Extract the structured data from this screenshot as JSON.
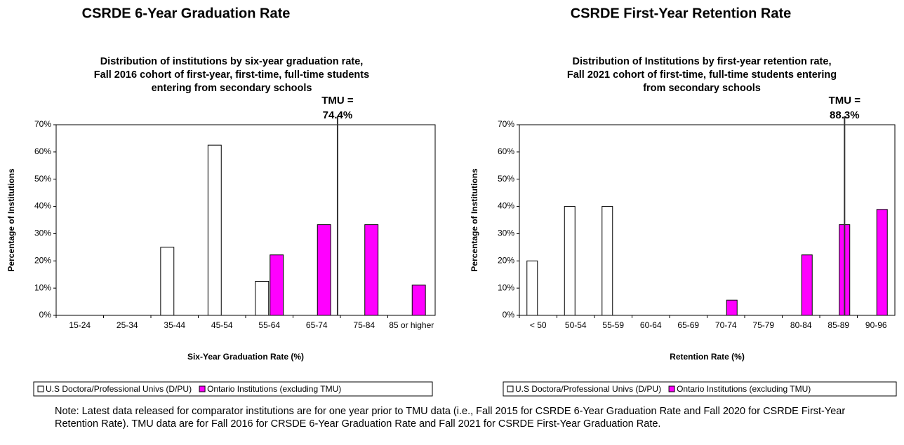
{
  "chart_data": [
    {
      "type": "bar",
      "heading": "CSRDE 6-Year Graduation Rate",
      "title_lines": [
        "Distribution of institutions by six-year graduation rate,",
        "Fall 2016 cohort of first-year, first-time, full-time students",
        "entering from secondary schools"
      ],
      "x_label": "Six-Year Graduation Rate (%)",
      "y_label": "Percentage of Institutions",
      "categories": [
        "15-24",
        "25-34",
        "35-44",
        "45-54",
        "55-64",
        "65-74",
        "75-84",
        "85 or higher"
      ],
      "series": [
        {
          "name": "U.S Doctora/Professional Univs (D/PU)",
          "color": "#ffffff",
          "values": [
            0,
            0,
            25,
            62.5,
            12.5,
            0,
            0,
            0
          ]
        },
        {
          "name": "Ontario Institutions (excluding TMU)",
          "color": "#ff00ff",
          "values": [
            0,
            0,
            0,
            0,
            22.2,
            33.3,
            33.3,
            11.1
          ]
        }
      ],
      "ylim": [
        0,
        70
      ],
      "yticks": [
        {
          "value": 0,
          "label": "0%"
        },
        {
          "value": 10,
          "label": "10%"
        },
        {
          "value": 20,
          "label": "20%"
        },
        {
          "value": 30,
          "label": "30%"
        },
        {
          "value": 40,
          "label": "40%"
        },
        {
          "value": 50,
          "label": "50%"
        },
        {
          "value": 60,
          "label": "60%"
        },
        {
          "value": 70,
          "label": "70%"
        }
      ],
      "reference_line": {
        "value": 74.4,
        "label_lines": [
          "TMU =",
          "74.4%"
        ]
      }
    },
    {
      "type": "bar",
      "heading": "CSRDE First-Year Retention Rate",
      "title_lines": [
        "Distribution of Institutions by first-year retention rate,",
        "Fall 2021 cohort of first-time, full-time students entering",
        "from secondary schools"
      ],
      "x_label": "Retention Rate (%)",
      "y_label": "Percentage of Institutions",
      "categories": [
        "< 50",
        "50-54",
        "55-59",
        "60-64",
        "65-69",
        "70-74",
        "75-79",
        "80-84",
        "85-89",
        "90-96"
      ],
      "series": [
        {
          "name": "U.S Doctora/Professional Univs (D/PU)",
          "color": "#ffffff",
          "values": [
            20,
            40,
            40,
            0,
            0,
            0,
            0,
            0,
            0,
            0
          ]
        },
        {
          "name": "Ontario Institutions (excluding TMU)",
          "color": "#ff00ff",
          "values": [
            0,
            0,
            0,
            0,
            0,
            5.6,
            0,
            22.2,
            33.3,
            38.9
          ]
        }
      ],
      "ylim": [
        0,
        70
      ],
      "yticks": [
        {
          "value": 0,
          "label": "0%"
        },
        {
          "value": 10,
          "label": "10%"
        },
        {
          "value": 20,
          "label": "20%"
        },
        {
          "value": 30,
          "label": "30%"
        },
        {
          "value": 40,
          "label": "40%"
        },
        {
          "value": 50,
          "label": "50%"
        },
        {
          "value": 60,
          "label": "60%"
        },
        {
          "value": 70,
          "label": "70%"
        }
      ],
      "reference_line": {
        "value": 88.3,
        "label_lines": [
          "TMU =",
          "88.3%"
        ]
      }
    }
  ],
  "note": "Note: Latest data released for comparator institutions are for one year prior to TMU data (i.e., Fall 2015 for CSRDE 6-Year Graduation Rate and Fall 2020 for CSRDE First-Year Retention Rate). TMU data are for Fall 2016 for CRSDE 6-Year Graduation Rate and Fall 2021 for CSRDE First-Year Graduation Rate."
}
